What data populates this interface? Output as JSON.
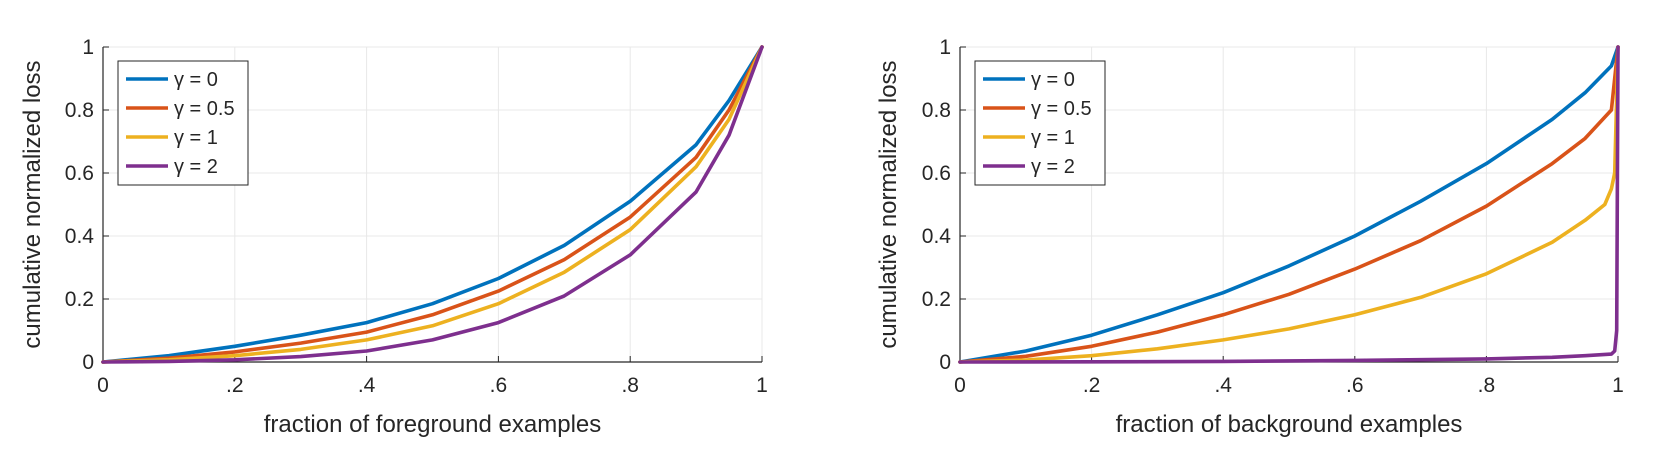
{
  "chart_data": [
    {
      "type": "line",
      "xlabel": "fraction of foreground examples",
      "ylabel": "cumulative normalized loss",
      "xlim": [
        0,
        1
      ],
      "ylim": [
        0,
        1
      ],
      "xtick_labels": [
        "0",
        ".2",
        ".4",
        ".6",
        ".8",
        "1"
      ],
      "xtick_values": [
        0,
        0.2,
        0.4,
        0.6,
        0.8,
        1
      ],
      "ytick_labels": [
        "0",
        "0.2",
        "0.4",
        "0.6",
        "0.8",
        "1"
      ],
      "ytick_values": [
        0,
        0.2,
        0.4,
        0.6,
        0.8,
        1
      ],
      "grid": true,
      "legend_position": "top-left",
      "series": [
        {
          "name": "γ = 0",
          "color": "#0072BD",
          "x": [
            0,
            0.1,
            0.2,
            0.3,
            0.4,
            0.5,
            0.6,
            0.7,
            0.8,
            0.9,
            0.95,
            1
          ],
          "y": [
            0,
            0.02,
            0.05,
            0.085,
            0.125,
            0.185,
            0.265,
            0.37,
            0.51,
            0.69,
            0.83,
            1
          ]
        },
        {
          "name": "γ = 0.5",
          "color": "#D95319",
          "x": [
            0,
            0.1,
            0.2,
            0.3,
            0.4,
            0.5,
            0.6,
            0.7,
            0.8,
            0.9,
            0.95,
            1
          ],
          "y": [
            0,
            0.012,
            0.032,
            0.06,
            0.095,
            0.15,
            0.225,
            0.325,
            0.46,
            0.65,
            0.8,
            1
          ]
        },
        {
          "name": "γ = 1",
          "color": "#EDB120",
          "x": [
            0,
            0.1,
            0.2,
            0.3,
            0.4,
            0.5,
            0.6,
            0.7,
            0.8,
            0.9,
            0.95,
            1
          ],
          "y": [
            0,
            0.007,
            0.02,
            0.04,
            0.07,
            0.115,
            0.185,
            0.285,
            0.42,
            0.62,
            0.77,
            1
          ]
        },
        {
          "name": "γ = 2",
          "color": "#7E2F8E",
          "x": [
            0,
            0.1,
            0.2,
            0.3,
            0.4,
            0.5,
            0.6,
            0.7,
            0.8,
            0.9,
            0.95,
            1
          ],
          "y": [
            0,
            0.002,
            0.007,
            0.017,
            0.035,
            0.07,
            0.125,
            0.21,
            0.34,
            0.54,
            0.72,
            1
          ]
        }
      ]
    },
    {
      "type": "line",
      "xlabel": "fraction of background examples",
      "ylabel": "cumulative normalized loss",
      "xlim": [
        0,
        1
      ],
      "ylim": [
        0,
        1
      ],
      "xtick_labels": [
        "0",
        ".2",
        ".4",
        ".6",
        ".8",
        "1"
      ],
      "xtick_values": [
        0,
        0.2,
        0.4,
        0.6,
        0.8,
        1
      ],
      "ytick_labels": [
        "0",
        "0.2",
        "0.4",
        "0.6",
        "0.8",
        "1"
      ],
      "ytick_values": [
        0,
        0.2,
        0.4,
        0.6,
        0.8,
        1
      ],
      "grid": true,
      "legend_position": "top-left",
      "series": [
        {
          "name": "γ = 0",
          "color": "#0072BD",
          "x": [
            0,
            0.1,
            0.2,
            0.3,
            0.4,
            0.5,
            0.6,
            0.7,
            0.8,
            0.9,
            0.95,
            0.99,
            1
          ],
          "y": [
            0,
            0.035,
            0.085,
            0.15,
            0.22,
            0.305,
            0.4,
            0.51,
            0.63,
            0.77,
            0.855,
            0.94,
            1
          ]
        },
        {
          "name": "γ = 0.5",
          "color": "#D95319",
          "x": [
            0,
            0.1,
            0.2,
            0.3,
            0.4,
            0.5,
            0.6,
            0.7,
            0.8,
            0.9,
            0.95,
            0.99,
            1
          ],
          "y": [
            0,
            0.018,
            0.05,
            0.095,
            0.15,
            0.215,
            0.295,
            0.385,
            0.495,
            0.63,
            0.71,
            0.8,
            1
          ]
        },
        {
          "name": "γ = 1",
          "color": "#EDB120",
          "x": [
            0,
            0.1,
            0.2,
            0.3,
            0.4,
            0.5,
            0.6,
            0.7,
            0.8,
            0.9,
            0.95,
            0.98,
            0.99,
            0.995,
            1
          ],
          "y": [
            0,
            0.006,
            0.02,
            0.042,
            0.07,
            0.105,
            0.15,
            0.205,
            0.28,
            0.38,
            0.45,
            0.5,
            0.55,
            0.6,
            1
          ]
        },
        {
          "name": "γ = 2",
          "color": "#7E2F8E",
          "x": [
            0,
            0.2,
            0.4,
            0.6,
            0.8,
            0.9,
            0.95,
            0.99,
            0.995,
            0.998,
            1
          ],
          "y": [
            0,
            0.0005,
            0.002,
            0.005,
            0.01,
            0.015,
            0.02,
            0.025,
            0.035,
            0.1,
            1
          ]
        }
      ]
    }
  ]
}
